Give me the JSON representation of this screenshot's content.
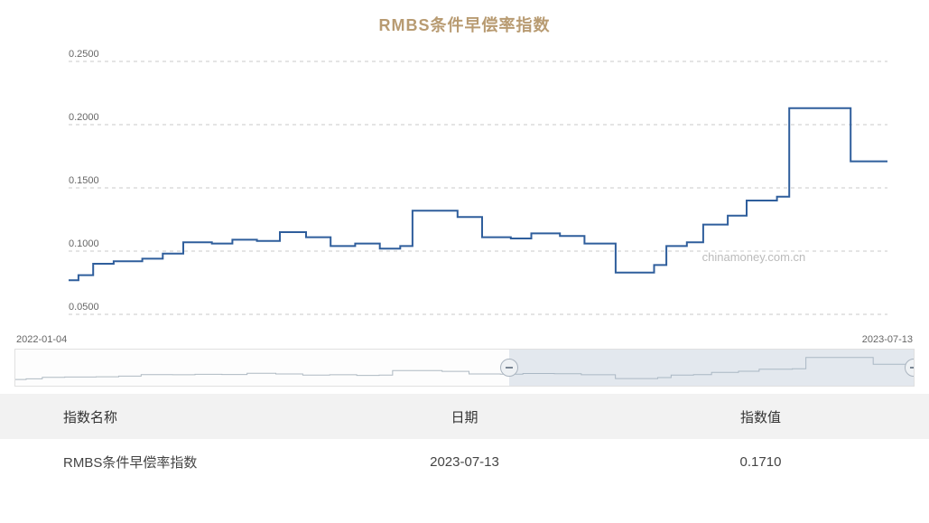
{
  "title": {
    "text": "RMBS条件早偿率指数",
    "color": "#b89b72",
    "fontsize": 18
  },
  "chart": {
    "type": "line",
    "line_color": "#2f5e9c",
    "line_width": 2,
    "grid_color": "#c9c9c9",
    "background_color": "#ffffff",
    "ylabel_color": "#666666",
    "ylim": [
      0.05,
      0.25
    ],
    "yticks": [
      "0.0500",
      "0.1000",
      "0.1500",
      "0.2000",
      "0.2500"
    ],
    "x_start_label": "2022-01-04",
    "x_end_label": "2023-07-13",
    "watermark": "chinamoney.com.cn",
    "watermark_color": "#bbbbbb",
    "series": [
      {
        "x": 0.0,
        "y": 0.077
      },
      {
        "x": 0.012,
        "y": 0.077
      },
      {
        "x": 0.012,
        "y": 0.081
      },
      {
        "x": 0.03,
        "y": 0.081
      },
      {
        "x": 0.03,
        "y": 0.09
      },
      {
        "x": 0.055,
        "y": 0.09
      },
      {
        "x": 0.055,
        "y": 0.092
      },
      {
        "x": 0.09,
        "y": 0.092
      },
      {
        "x": 0.09,
        "y": 0.094
      },
      {
        "x": 0.115,
        "y": 0.094
      },
      {
        "x": 0.115,
        "y": 0.098
      },
      {
        "x": 0.14,
        "y": 0.098
      },
      {
        "x": 0.14,
        "y": 0.107
      },
      {
        "x": 0.175,
        "y": 0.107
      },
      {
        "x": 0.175,
        "y": 0.106
      },
      {
        "x": 0.2,
        "y": 0.106
      },
      {
        "x": 0.2,
        "y": 0.109
      },
      {
        "x": 0.23,
        "y": 0.109
      },
      {
        "x": 0.23,
        "y": 0.108
      },
      {
        "x": 0.258,
        "y": 0.108
      },
      {
        "x": 0.258,
        "y": 0.115
      },
      {
        "x": 0.29,
        "y": 0.115
      },
      {
        "x": 0.29,
        "y": 0.111
      },
      {
        "x": 0.32,
        "y": 0.111
      },
      {
        "x": 0.32,
        "y": 0.104
      },
      {
        "x": 0.35,
        "y": 0.104
      },
      {
        "x": 0.35,
        "y": 0.106
      },
      {
        "x": 0.38,
        "y": 0.106
      },
      {
        "x": 0.38,
        "y": 0.102
      },
      {
        "x": 0.405,
        "y": 0.102
      },
      {
        "x": 0.405,
        "y": 0.104
      },
      {
        "x": 0.42,
        "y": 0.104
      },
      {
        "x": 0.42,
        "y": 0.132
      },
      {
        "x": 0.475,
        "y": 0.132
      },
      {
        "x": 0.475,
        "y": 0.127
      },
      {
        "x": 0.505,
        "y": 0.127
      },
      {
        "x": 0.505,
        "y": 0.111
      },
      {
        "x": 0.54,
        "y": 0.111
      },
      {
        "x": 0.54,
        "y": 0.11
      },
      {
        "x": 0.565,
        "y": 0.11
      },
      {
        "x": 0.565,
        "y": 0.114
      },
      {
        "x": 0.6,
        "y": 0.114
      },
      {
        "x": 0.6,
        "y": 0.112
      },
      {
        "x": 0.63,
        "y": 0.112
      },
      {
        "x": 0.63,
        "y": 0.106
      },
      {
        "x": 0.668,
        "y": 0.106
      },
      {
        "x": 0.668,
        "y": 0.083
      },
      {
        "x": 0.715,
        "y": 0.083
      },
      {
        "x": 0.715,
        "y": 0.089
      },
      {
        "x": 0.73,
        "y": 0.089
      },
      {
        "x": 0.73,
        "y": 0.104
      },
      {
        "x": 0.755,
        "y": 0.104
      },
      {
        "x": 0.755,
        "y": 0.107
      },
      {
        "x": 0.775,
        "y": 0.107
      },
      {
        "x": 0.775,
        "y": 0.121
      },
      {
        "x": 0.805,
        "y": 0.121
      },
      {
        "x": 0.805,
        "y": 0.128
      },
      {
        "x": 0.828,
        "y": 0.128
      },
      {
        "x": 0.828,
        "y": 0.14
      },
      {
        "x": 0.865,
        "y": 0.14
      },
      {
        "x": 0.865,
        "y": 0.143
      },
      {
        "x": 0.88,
        "y": 0.143
      },
      {
        "x": 0.88,
        "y": 0.213
      },
      {
        "x": 0.955,
        "y": 0.213
      },
      {
        "x": 0.955,
        "y": 0.171
      },
      {
        "x": 1.0,
        "y": 0.171
      }
    ]
  },
  "range": {
    "min": 0,
    "max": 1,
    "selection_start": 0.55,
    "selection_end": 1.0,
    "selection_color": "rgba(160,180,200,0.28)",
    "handle_bg": "#eef1f4",
    "handle_border": "#aab4bf",
    "mini_line_color": "#9aa7b3"
  },
  "table": {
    "header_bg": "#f2f2f2",
    "columns": [
      "指数名称",
      "日期",
      "指数值"
    ],
    "rows": [
      [
        "RMBS条件早偿率指数",
        "2023-07-13",
        "0.1710"
      ]
    ]
  }
}
